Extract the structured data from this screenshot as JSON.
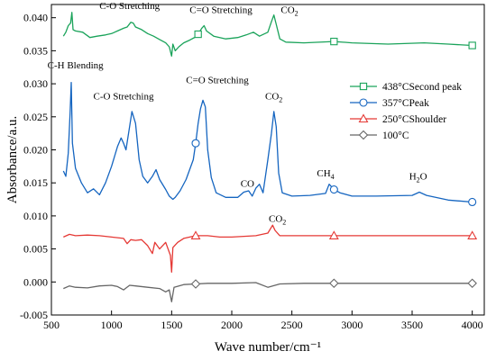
{
  "chart_data": {
    "type": "line",
    "title": "",
    "xlabel": "Wave number/cm⁻¹",
    "ylabel": "Absorbance/a.u.",
    "xlim": [
      500,
      4100
    ],
    "ylim": [
      -0.005,
      0.042
    ],
    "x_ticks": [
      500,
      1000,
      1500,
      2000,
      2500,
      3000,
      3500,
      4000
    ],
    "y_ticks": [
      -0.005,
      0.0,
      0.005,
      0.01,
      0.015,
      0.02,
      0.025,
      0.03,
      0.035,
      0.04
    ],
    "x_tick_labels": [
      "500",
      "1000",
      "1500",
      "2000",
      "2500",
      "3000",
      "3500",
      "4000"
    ],
    "y_tick_labels": [
      "-0.005",
      "0.000",
      "0.005",
      "0.010",
      "0.015",
      "0.020",
      "0.025",
      "0.030",
      "0.035",
      "0.040"
    ],
    "grid": false,
    "legend_position": "right",
    "series": [
      {
        "name": "438°CSecond peak",
        "color": "#1aa35a",
        "marker": "square",
        "marker_x": [
          1720,
          2850,
          4000
        ],
        "points": [
          [
            600,
            0.0372
          ],
          [
            620,
            0.0378
          ],
          [
            640,
            0.0388
          ],
          [
            660,
            0.0392
          ],
          [
            670,
            0.0408
          ],
          [
            680,
            0.0382
          ],
          [
            700,
            0.038
          ],
          [
            760,
            0.0378
          ],
          [
            820,
            0.037
          ],
          [
            880,
            0.0372
          ],
          [
            950,
            0.0374
          ],
          [
            1000,
            0.0376
          ],
          [
            1050,
            0.038
          ],
          [
            1100,
            0.0384
          ],
          [
            1130,
            0.0386
          ],
          [
            1160,
            0.0393
          ],
          [
            1180,
            0.0392
          ],
          [
            1200,
            0.0386
          ],
          [
            1250,
            0.0382
          ],
          [
            1300,
            0.0376
          ],
          [
            1350,
            0.0372
          ],
          [
            1400,
            0.0367
          ],
          [
            1450,
            0.0362
          ],
          [
            1480,
            0.0356
          ],
          [
            1500,
            0.0342
          ],
          [
            1510,
            0.036
          ],
          [
            1530,
            0.035
          ],
          [
            1560,
            0.0356
          ],
          [
            1600,
            0.0362
          ],
          [
            1650,
            0.0366
          ],
          [
            1700,
            0.0371
          ],
          [
            1720,
            0.0375
          ],
          [
            1750,
            0.0384
          ],
          [
            1770,
            0.0388
          ],
          [
            1790,
            0.038
          ],
          [
            1850,
            0.0372
          ],
          [
            1950,
            0.0368
          ],
          [
            2050,
            0.037
          ],
          [
            2120,
            0.0374
          ],
          [
            2180,
            0.0378
          ],
          [
            2230,
            0.0372
          ],
          [
            2300,
            0.0378
          ],
          [
            2330,
            0.0394
          ],
          [
            2350,
            0.0404
          ],
          [
            2370,
            0.039
          ],
          [
            2400,
            0.0368
          ],
          [
            2450,
            0.0363
          ],
          [
            2600,
            0.0362
          ],
          [
            2850,
            0.0364
          ],
          [
            3000,
            0.0362
          ],
          [
            3300,
            0.036
          ],
          [
            3600,
            0.0362
          ],
          [
            3800,
            0.036
          ],
          [
            4000,
            0.0358
          ]
        ]
      },
      {
        "name": "357°CPeak",
        "color": "#1565c0",
        "marker": "circle",
        "marker_x": [
          1700,
          2850,
          4000
        ],
        "points": [
          [
            600,
            0.0168
          ],
          [
            620,
            0.016
          ],
          [
            640,
            0.0195
          ],
          [
            655,
            0.0255
          ],
          [
            665,
            0.0302
          ],
          [
            675,
            0.021
          ],
          [
            700,
            0.0172
          ],
          [
            750,
            0.015
          ],
          [
            800,
            0.0135
          ],
          [
            850,
            0.0141
          ],
          [
            900,
            0.0132
          ],
          [
            950,
            0.015
          ],
          [
            1000,
            0.0175
          ],
          [
            1050,
            0.0205
          ],
          [
            1080,
            0.0218
          ],
          [
            1100,
            0.021
          ],
          [
            1120,
            0.02
          ],
          [
            1150,
            0.0235
          ],
          [
            1170,
            0.0258
          ],
          [
            1200,
            0.024
          ],
          [
            1230,
            0.0185
          ],
          [
            1260,
            0.016
          ],
          [
            1300,
            0.015
          ],
          [
            1340,
            0.016
          ],
          [
            1370,
            0.017
          ],
          [
            1400,
            0.0155
          ],
          [
            1450,
            0.014
          ],
          [
            1480,
            0.013
          ],
          [
            1510,
            0.0125
          ],
          [
            1530,
            0.0128
          ],
          [
            1570,
            0.0138
          ],
          [
            1620,
            0.0155
          ],
          [
            1680,
            0.0185
          ],
          [
            1700,
            0.021
          ],
          [
            1720,
            0.024
          ],
          [
            1740,
            0.0262
          ],
          [
            1760,
            0.0275
          ],
          [
            1780,
            0.0265
          ],
          [
            1800,
            0.02
          ],
          [
            1830,
            0.0158
          ],
          [
            1870,
            0.0135
          ],
          [
            1950,
            0.0128
          ],
          [
            2050,
            0.0128
          ],
          [
            2100,
            0.0136
          ],
          [
            2140,
            0.0138
          ],
          [
            2170,
            0.013
          ],
          [
            2200,
            0.0142
          ],
          [
            2230,
            0.0148
          ],
          [
            2260,
            0.0135
          ],
          [
            2300,
            0.0185
          ],
          [
            2330,
            0.0225
          ],
          [
            2350,
            0.0258
          ],
          [
            2370,
            0.0235
          ],
          [
            2390,
            0.0165
          ],
          [
            2420,
            0.0135
          ],
          [
            2500,
            0.013
          ],
          [
            2650,
            0.0131
          ],
          [
            2780,
            0.0134
          ],
          [
            2810,
            0.0148
          ],
          [
            2850,
            0.014
          ],
          [
            2900,
            0.0135
          ],
          [
            3000,
            0.013
          ],
          [
            3200,
            0.013
          ],
          [
            3500,
            0.0131
          ],
          [
            3560,
            0.0136
          ],
          [
            3620,
            0.0131
          ],
          [
            3800,
            0.0124
          ],
          [
            4000,
            0.0121
          ]
        ]
      },
      {
        "name": "250°CShoulder",
        "color": "#e53935",
        "marker": "triangle",
        "marker_x": [
          1700,
          2850,
          4000
        ],
        "points": [
          [
            600,
            0.0068
          ],
          [
            650,
            0.0072
          ],
          [
            700,
            0.007
          ],
          [
            800,
            0.0071
          ],
          [
            900,
            0.007
          ],
          [
            1000,
            0.0068
          ],
          [
            1100,
            0.0066
          ],
          [
            1130,
            0.0058
          ],
          [
            1160,
            0.0064
          ],
          [
            1200,
            0.0063
          ],
          [
            1250,
            0.0064
          ],
          [
            1300,
            0.0055
          ],
          [
            1340,
            0.0043
          ],
          [
            1360,
            0.006
          ],
          [
            1400,
            0.005
          ],
          [
            1450,
            0.006
          ],
          [
            1490,
            0.004
          ],
          [
            1500,
            0.0015
          ],
          [
            1510,
            0.0052
          ],
          [
            1550,
            0.006
          ],
          [
            1600,
            0.0066
          ],
          [
            1700,
            0.007
          ],
          [
            1800,
            0.007
          ],
          [
            1900,
            0.0068
          ],
          [
            2000,
            0.0068
          ],
          [
            2100,
            0.0069
          ],
          [
            2200,
            0.007
          ],
          [
            2300,
            0.0074
          ],
          [
            2340,
            0.0086
          ],
          [
            2360,
            0.0078
          ],
          [
            2400,
            0.007
          ],
          [
            2600,
            0.007
          ],
          [
            2850,
            0.007
          ],
          [
            3200,
            0.007
          ],
          [
            3600,
            0.007
          ],
          [
            3800,
            0.007
          ],
          [
            4000,
            0.007
          ]
        ]
      },
      {
        "name": "100°C",
        "color": "#666666",
        "marker": "diamond",
        "marker_x": [
          1700,
          2850,
          4000
        ],
        "points": [
          [
            600,
            -0.001
          ],
          [
            650,
            -0.0006
          ],
          [
            700,
            -0.0008
          ],
          [
            800,
            -0.0009
          ],
          [
            900,
            -0.0006
          ],
          [
            1000,
            -0.0005
          ],
          [
            1050,
            -0.0007
          ],
          [
            1100,
            -0.0012
          ],
          [
            1150,
            -0.0005
          ],
          [
            1200,
            -0.0006
          ],
          [
            1300,
            -0.0008
          ],
          [
            1400,
            -0.001
          ],
          [
            1450,
            -0.0015
          ],
          [
            1480,
            -0.0012
          ],
          [
            1500,
            -0.003
          ],
          [
            1520,
            -0.0008
          ],
          [
            1600,
            -0.0004
          ],
          [
            1700,
            -0.0003
          ],
          [
            1800,
            -0.0002
          ],
          [
            2000,
            -0.0002
          ],
          [
            2200,
            -0.0001
          ],
          [
            2300,
            -0.0008
          ],
          [
            2400,
            -0.0003
          ],
          [
            2600,
            -0.0002
          ],
          [
            2850,
            -0.0002
          ],
          [
            3200,
            -0.0002
          ],
          [
            3600,
            -0.0002
          ],
          [
            4000,
            -0.0002
          ]
        ]
      }
    ],
    "annotations": [
      {
        "text": "C-O Stretching",
        "x": 1150,
        "y": 0.0413
      },
      {
        "text": "C=O Stretching",
        "x": 1910,
        "y": 0.0407
      },
      {
        "text": "CO",
        "sub": "2",
        "x": 2480,
        "y": 0.0407
      },
      {
        "text": "C-H Blending",
        "x": 700,
        "y": 0.0323
      },
      {
        "text": "C=O Stretching",
        "x": 1880,
        "y": 0.0301
      },
      {
        "text": "C-O Stretching",
        "x": 1100,
        "y": 0.0276
      },
      {
        "text": "CO",
        "sub": "2",
        "x": 2350,
        "y": 0.0276
      },
      {
        "text": "CO",
        "x": 2130,
        "y": 0.0144
      },
      {
        "text": "CH",
        "sub": "4",
        "x": 2780,
        "y": 0.016
      },
      {
        "text": "H",
        "sub": "2",
        "post": "O",
        "x": 3550,
        "y": 0.0155
      },
      {
        "text": "CO",
        "sub": "2",
        "x": 2380,
        "y": 0.0091
      }
    ]
  }
}
